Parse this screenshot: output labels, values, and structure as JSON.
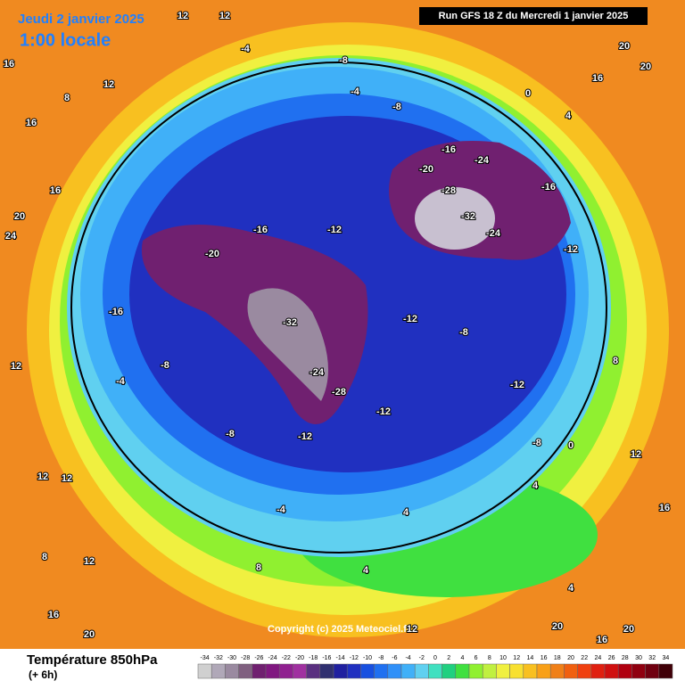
{
  "header": {
    "date": "Jeudi 2 janvier 2025",
    "time": "1:00 locale",
    "run": "Run GFS 18 Z du Mercredi 1 janvier 2025"
  },
  "map": {
    "copyright": "Copyright (c) 2025 Meteociel.fr",
    "labels": [
      12,
      12,
      16,
      12,
      8,
      16,
      -4,
      -8,
      -4,
      0,
      4,
      16,
      20,
      20,
      -8,
      -16,
      -24,
      -20,
      -32,
      -28,
      -24,
      -16,
      -12,
      -20,
      -12,
      -16,
      -32,
      -28,
      -24,
      -12,
      -8,
      -12,
      -12,
      -8,
      -12,
      -16,
      -8,
      -4,
      12,
      16,
      20,
      24,
      12,
      12,
      8,
      -4,
      4,
      4,
      8,
      12,
      16,
      20,
      20,
      16,
      20,
      16,
      12,
      8,
      4,
      -8,
      4,
      0,
      12
    ]
  },
  "legend": {
    "title": "Température 850hPa",
    "subtitle": "(+ 6h)",
    "ticks": [
      -34,
      -32,
      -30,
      -28,
      -26,
      -24,
      -22,
      -20,
      -18,
      -16,
      -14,
      -12,
      -10,
      -8,
      -6,
      -4,
      -2,
      0,
      2,
      4,
      6,
      8,
      10,
      12,
      14,
      16,
      18,
      20,
      22,
      24,
      26,
      28,
      30,
      32,
      34
    ],
    "colors": [
      "#d0d0d0",
      "#b0a8b8",
      "#9a8aa0",
      "#806080",
      "#702070",
      "#801880",
      "#902090",
      "#a030a0",
      "#5a3080",
      "#303070",
      "#2020a0",
      "#2030c0",
      "#1850e0",
      "#2070f0",
      "#3090f8",
      "#40b0f8",
      "#60d0f0",
      "#40e0c0",
      "#20d080",
      "#40e040",
      "#90f030",
      "#c0f040",
      "#f0f040",
      "#f8e030",
      "#f8c020",
      "#f8a018",
      "#f08018",
      "#f06010",
      "#f04010",
      "#e02010",
      "#d01010",
      "#b00010",
      "#900010",
      "#700010",
      "#400008"
    ]
  }
}
